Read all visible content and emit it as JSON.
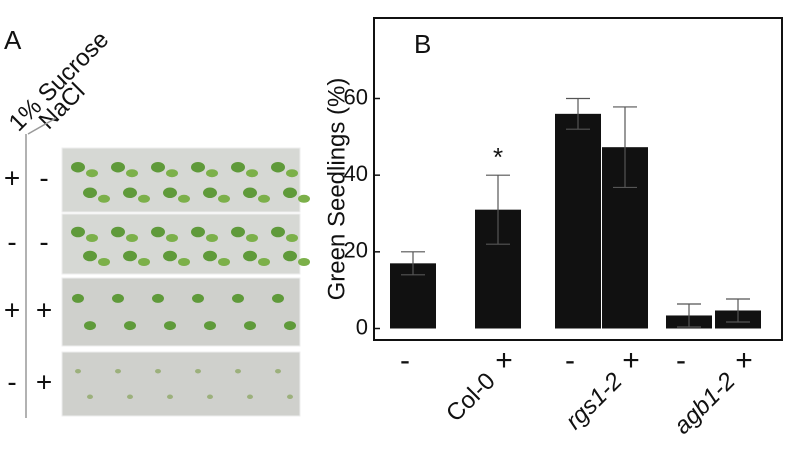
{
  "panel_a": {
    "label": "A",
    "sucrose_label": "1% Sucrose",
    "nacl_label": "NaCl",
    "rows": [
      {
        "sucrose": "+",
        "nacl": "-"
      },
      {
        "sucrose": "-",
        "nacl": "-"
      },
      {
        "sucrose": "+",
        "nacl": "+"
      },
      {
        "sucrose": "-",
        "nacl": "+"
      }
    ]
  },
  "chart_data": {
    "type": "bar",
    "panel_label": "B",
    "y_label": "Green Seedlings (%)",
    "categories": [
      "-",
      "+",
      "-",
      "+",
      "-",
      "+"
    ],
    "groups": [
      "Col-0",
      "rgs1-2",
      "agb1-2"
    ],
    "group_italic": [
      false,
      true,
      true
    ],
    "values": [
      17,
      31,
      56,
      47.3,
      3.4,
      4.7
    ],
    "errors": [
      3,
      9,
      4,
      10.5,
      3,
      3
    ],
    "value_annotations": [
      null,
      "*",
      null,
      null,
      null,
      null
    ],
    "color": "#111111",
    "ylim": [
      -3,
      81
    ],
    "yticks": [
      0,
      20,
      40,
      60
    ]
  }
}
